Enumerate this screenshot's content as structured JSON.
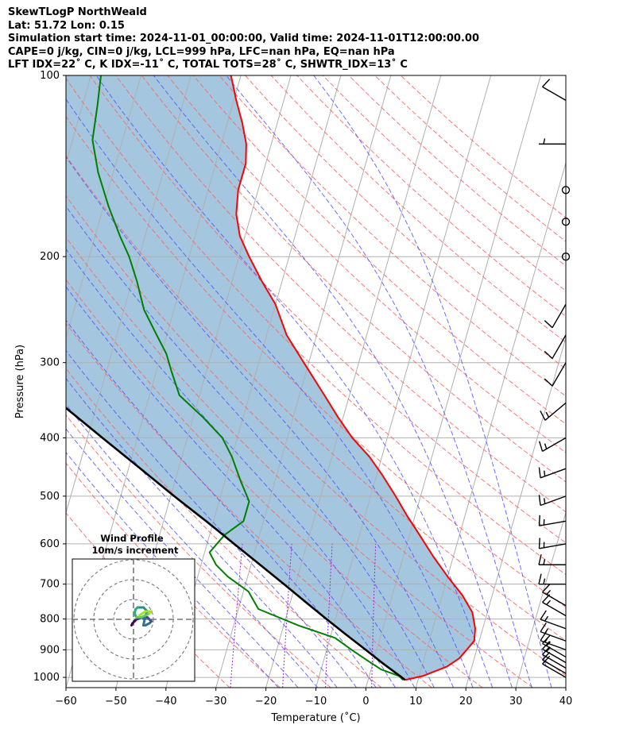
{
  "header": {
    "title": "SkewTLogP NorthWeald",
    "latlon": "Lat: 51.72   Lon: 0.15",
    "times": "Simulation start time: 2024-11-01_00:00:00, Valid time: 2024-11-01T12:00:00.00",
    "indices1": "CAPE=0 j/kg, CIN=0 j/kg, LCL=999 hPa, LFC=nan hPa, EQ=nan hPa",
    "indices2": "LFT IDX=22˚ C, K IDX=-11˚ C, TOTAL TOTS=28˚ C, SHWTR_IDX=13˚ C"
  },
  "chart_data": {
    "type": "skew-t log-p",
    "xlabel": "Temperature (˚C)",
    "ylabel": "Pressure (hPa)",
    "xlim": [
      -60,
      40
    ],
    "ylim": [
      1040,
      100
    ],
    "xticks": [
      -60,
      -50,
      -40,
      -30,
      -20,
      -10,
      0,
      10,
      20,
      30,
      40
    ],
    "yticks": [
      100,
      200,
      300,
      400,
      500,
      600,
      700,
      800,
      900,
      1000
    ],
    "grid": true,
    "colors": {
      "temperature": "#ff0000",
      "dewpoint": "#008000",
      "parcel": "#000000",
      "shade": "#a4c6df",
      "dry_adiabat": "#ff6666",
      "moist_adiabat": "#5555ff",
      "mixing_ratio": "#9933cc",
      "isotherm": "#b0b0b0"
    },
    "series": [
      {
        "key": "temperature",
        "pressure": [
          1010,
          995,
          960,
          930,
          900,
          870,
          830,
          780,
          730,
          680,
          630,
          580,
          540,
          500,
          460,
          430,
          400,
          370,
          340,
          300,
          270,
          240,
          220,
          200,
          185,
          170,
          155,
          140,
          130,
          120,
          110,
          100
        ],
        "values": [
          7.4,
          10.7,
          15,
          17,
          18,
          19,
          18.5,
          17,
          14,
          10,
          6,
          2,
          -1.5,
          -5,
          -9,
          -12.5,
          -17,
          -21,
          -25,
          -31,
          -36,
          -40,
          -44,
          -48,
          -51,
          -53,
          -54,
          -54,
          -55,
          -57,
          -59.5,
          -62
        ]
      },
      {
        "key": "dewpoint",
        "pressure": [
          1010,
          995,
          970,
          940,
          900,
          860,
          820,
          770,
          720,
          680,
          650,
          620,
          580,
          550,
          510,
          470,
          430,
          400,
          370,
          340,
          310,
          290,
          270,
          245,
          220,
          200,
          185,
          165,
          145,
          128,
          112,
          100
        ],
        "values": [
          7,
          6,
          2,
          -1,
          -5,
          -9,
          -17,
          -26,
          -29,
          -34,
          -37,
          -39,
          -37,
          -34,
          -34,
          -37,
          -40,
          -43,
          -48,
          -54,
          -57,
          -59,
          -62,
          -66,
          -69,
          -72,
          -75,
          -79,
          -83,
          -86,
          -87,
          -88
        ]
      },
      {
        "key": "parcel",
        "pressure": [
          1010,
          1000,
          950,
          900,
          850,
          800,
          750,
          700,
          650,
          600,
          550,
          500,
          450,
          400,
          350,
          300,
          250,
          200,
          150,
          100
        ],
        "values": [
          7.4,
          6.6,
          2.2,
          -2.2,
          -6.9,
          -11.8,
          -16.9,
          -22.3,
          -28.2,
          -34.6,
          -41.5,
          -49.3,
          -57.6,
          -67,
          -77.5,
          -89.5,
          -103.5,
          -120.6,
          -142.5,
          -174.8
        ]
      }
    ],
    "wind_barbs": {
      "x_temp": 40,
      "pressure": [
        1000,
        985,
        965,
        945,
        925,
        900,
        870,
        830,
        790,
        760,
        700,
        650,
        600,
        550,
        500,
        450,
        400,
        350,
        300,
        270,
        240,
        200,
        175,
        155,
        130,
        110
      ],
      "speed_kt": [
        10,
        10,
        10,
        15,
        15,
        15,
        15,
        15,
        15,
        15,
        15,
        15,
        15,
        15,
        15,
        15,
        15,
        15,
        10,
        10,
        10,
        0,
        0,
        0,
        5,
        10
      ],
      "dir_deg": [
        300,
        300,
        300,
        300,
        300,
        290,
        290,
        290,
        300,
        300,
        270,
        270,
        260,
        260,
        250,
        250,
        240,
        230,
        210,
        210,
        210,
        0,
        0,
        0,
        270,
        300
      ]
    },
    "hodograph": {
      "title": "Wind Profile",
      "subtitle": "10m/s increment",
      "rings_ms": [
        10,
        20,
        30
      ],
      "u": [
        -1,
        -0.5,
        0.5,
        1.5,
        3,
        5,
        7,
        8,
        9,
        8,
        6,
        5,
        6,
        7,
        5,
        2,
        1,
        0.5,
        1.5,
        4,
        6,
        8,
        9,
        6,
        3
      ],
      "v": [
        -3,
        -2,
        -1,
        0,
        0.5,
        1,
        1,
        0,
        -1,
        -2,
        -3,
        -3,
        2,
        4,
        6,
        6,
        5,
        3,
        1,
        1,
        2,
        3,
        4,
        4,
        2
      ]
    }
  }
}
